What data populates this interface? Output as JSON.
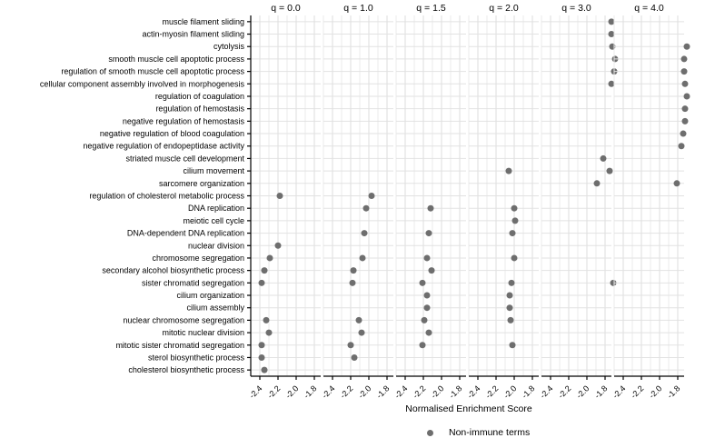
{
  "chart_data": {
    "type": "scatter",
    "xlabel": "Normalised Enrichment Score",
    "x_ticks": [
      "-2.4",
      "-2.2",
      "-2.0",
      "-1.8"
    ],
    "x_tick_values": [
      -2.4,
      -2.2,
      -2.0,
      -1.8
    ],
    "xlim": [
      -2.5,
      -1.7
    ],
    "grid": true,
    "legend_position": "bottom",
    "legend": {
      "label": "Non-immune terms"
    },
    "colors": {
      "point": "#6e6e6e",
      "grid_major": "#dcdcdc",
      "grid_minor": "#ebebeb",
      "grid_row": "#e2e2e2",
      "axis": "#000000",
      "text": "#000000"
    },
    "categories": [
      "muscle filament sliding",
      "actin-myosin filament sliding",
      "cytolysis",
      "smooth muscle cell apoptotic process",
      "regulation of smooth muscle cell apoptotic process",
      "cellular component assembly involved in morphogenesis",
      "regulation of coagulation",
      "regulation of hemostasis",
      "negative regulation of hemostasis",
      "negative regulation of blood coagulation",
      "negative regulation of endopeptidase activity",
      "striated muscle cell development",
      "cilium movement",
      "sarcomere organization",
      "regulation of cholesterol metabolic process",
      "DNA replication",
      "meiotic cell cycle",
      "DNA-dependent DNA replication",
      "nuclear division",
      "chromosome segregation",
      "secondary alcohol biosynthetic process",
      "sister chromatid segregation",
      "cilium organization",
      "cilium assembly",
      "nuclear chromosome segregation",
      "mitotic nuclear division",
      "mitotic sister chromatid segregation",
      "sterol biosynthetic process",
      "cholesterol biosynthetic process"
    ],
    "facets": [
      {
        "label": "q = 0.0",
        "points": [
          [
            "regulation of cholesterol metabolic process",
            -2.18
          ],
          [
            "nuclear division",
            -2.2
          ],
          [
            "chromosome segregation",
            -2.29
          ],
          [
            "secondary alcohol biosynthetic process",
            -2.35
          ],
          [
            "sister chromatid segregation",
            -2.38
          ],
          [
            "nuclear chromosome segregation",
            -2.33
          ],
          [
            "mitotic nuclear division",
            -2.3
          ],
          [
            "mitotic sister chromatid segregation",
            -2.38
          ],
          [
            "sterol biosynthetic process",
            -2.38
          ],
          [
            "cholesterol biosynthetic process",
            -2.35
          ]
        ]
      },
      {
        "label": "q = 1.0",
        "points": [
          [
            "regulation of cholesterol metabolic process",
            -1.97
          ],
          [
            "DNA replication",
            -2.03
          ],
          [
            "DNA-dependent DNA replication",
            -2.05
          ],
          [
            "chromosome segregation",
            -2.07
          ],
          [
            "secondary alcohol biosynthetic process",
            -2.17
          ],
          [
            "sister chromatid segregation",
            -2.18
          ],
          [
            "nuclear chromosome segregation",
            -2.11
          ],
          [
            "mitotic nuclear division",
            -2.08
          ],
          [
            "mitotic sister chromatid segregation",
            -2.2
          ],
          [
            "sterol biosynthetic process",
            -2.16
          ]
        ]
      },
      {
        "label": "q = 1.5",
        "points": [
          [
            "DNA replication",
            -2.12
          ],
          [
            "DNA-dependent DNA replication",
            -2.14
          ],
          [
            "chromosome segregation",
            -2.16
          ],
          [
            "secondary alcohol biosynthetic process",
            -2.11
          ],
          [
            "sister chromatid segregation",
            -2.21
          ],
          [
            "cilium organization",
            -2.16
          ],
          [
            "cilium assembly",
            -2.16
          ],
          [
            "nuclear chromosome segregation",
            -2.19
          ],
          [
            "mitotic nuclear division",
            -2.14
          ],
          [
            "mitotic sister chromatid segregation",
            -2.21
          ]
        ]
      },
      {
        "label": "q = 2.0",
        "points": [
          [
            "cilium movement",
            -2.06
          ],
          [
            "DNA replication",
            -2.0
          ],
          [
            "meiotic cell cycle",
            -1.99
          ],
          [
            "DNA-dependent DNA replication",
            -2.02
          ],
          [
            "chromosome segregation",
            -2.0
          ],
          [
            "sister chromatid segregation",
            -2.03
          ],
          [
            "cilium organization",
            -2.05
          ],
          [
            "cilium assembly",
            -2.05
          ],
          [
            "nuclear chromosome segregation",
            -2.04
          ],
          [
            "mitotic sister chromatid segregation",
            -2.02
          ]
        ]
      },
      {
        "label": "q = 3.0",
        "points": [
          [
            "muscle filament sliding",
            -1.73
          ],
          [
            "actin-myosin filament sliding",
            -1.73
          ],
          [
            "cytolysis",
            -1.72
          ],
          [
            "smooth muscle cell apoptotic process",
            -1.69
          ],
          [
            "regulation of smooth muscle cell apoptotic process",
            -1.7
          ],
          [
            "cellular component assembly involved in morphogenesis",
            -1.73
          ],
          [
            "striated muscle cell development",
            -1.82
          ],
          [
            "cilium movement",
            -1.75
          ],
          [
            "sarcomere organization",
            -1.89
          ],
          [
            "sister chromatid segregation",
            -1.71
          ]
        ]
      },
      {
        "label": "q = 4.0",
        "points": [
          [
            "cytolysis",
            -1.7
          ],
          [
            "smooth muscle cell apoptotic process",
            -1.73
          ],
          [
            "regulation of smooth muscle cell apoptotic process",
            -1.73
          ],
          [
            "cellular component assembly involved in morphogenesis",
            -1.72
          ],
          [
            "regulation of coagulation",
            -1.7
          ],
          [
            "regulation of hemostasis",
            -1.72
          ],
          [
            "negative regulation of hemostasis",
            -1.72
          ],
          [
            "negative regulation of blood coagulation",
            -1.74
          ],
          [
            "negative regulation of endopeptidase activity",
            -1.76
          ],
          [
            "sarcomere organization",
            -1.81
          ]
        ]
      }
    ]
  }
}
